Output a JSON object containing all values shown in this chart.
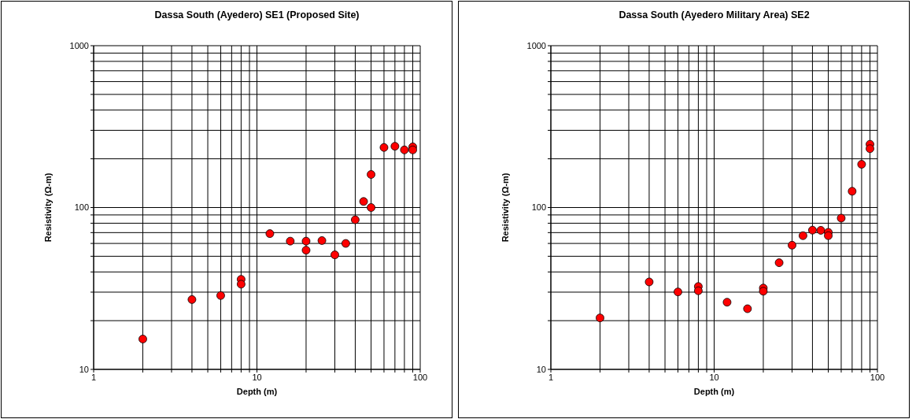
{
  "chart_data": [
    {
      "type": "scatter",
      "title": "Dassa South (Ayedero) SE1 (Proposed Site)",
      "xlabel": "Depth (m)",
      "ylabel": "Resistivity (Ω-m)",
      "log": "xy",
      "grid": true,
      "marker": "circle",
      "xlim": [
        1,
        100
      ],
      "ylim": [
        10,
        1000
      ],
      "xticks": [
        1,
        {
          "value": 2,
          "label": null
        },
        {
          "value": 3,
          "label": null
        },
        {
          "value": 4,
          "label": null
        },
        {
          "value": 5,
          "label": null
        },
        {
          "value": 6,
          "label": null
        },
        {
          "value": 7,
          "label": null
        },
        {
          "value": 8,
          "label": null
        },
        {
          "value": 9,
          "label": null
        },
        10,
        {
          "value": 20,
          "label": null
        },
        {
          "value": 30,
          "label": null
        },
        {
          "value": 40,
          "label": null
        },
        {
          "value": 50,
          "label": null
        },
        {
          "value": 60,
          "label": null
        },
        {
          "value": 70,
          "label": null
        },
        {
          "value": 80,
          "label": null
        },
        {
          "value": 90,
          "label": null
        },
        100
      ],
      "yticks": [
        10,
        {
          "value": 20,
          "label": null
        },
        {
          "value": 30,
          "label": null
        },
        {
          "value": 40,
          "label": null
        },
        {
          "value": 50,
          "label": null
        },
        {
          "value": 60,
          "label": null
        },
        {
          "value": 70,
          "label": null
        },
        {
          "value": 80,
          "label": null
        },
        {
          "value": 90,
          "label": null
        },
        100,
        {
          "value": 200,
          "label": null
        },
        {
          "value": 300,
          "label": null
        },
        {
          "value": 400,
          "label": null
        },
        {
          "value": 500,
          "label": null
        },
        {
          "value": 600,
          "label": null
        },
        {
          "value": 700,
          "label": null
        },
        {
          "value": 800,
          "label": null
        },
        {
          "value": 900,
          "label": null
        },
        1000
      ],
      "series": [
        {
          "color": "#ff0000",
          "x": [
            2,
            4,
            6,
            8,
            8,
            12,
            16,
            20,
            20,
            25,
            30,
            35,
            40,
            45,
            50,
            50,
            60,
            70,
            80,
            90,
            90
          ],
          "values": [
            15.4,
            27,
            28.6,
            36,
            33.6,
            69,
            62,
            62,
            54.5,
            62.5,
            51,
            60,
            84,
            109,
            100,
            160,
            235,
            239,
            227,
            237,
            227
          ]
        }
      ]
    },
    {
      "type": "scatter",
      "title": "Dassa South (Ayedero Military Area) SE2",
      "xlabel": "Depth (m)",
      "ylabel": "Resistivity (Ω-m)",
      "log": "xy",
      "grid": true,
      "marker": "circle",
      "xlim": [
        1,
        100
      ],
      "ylim": [
        10,
        1000
      ],
      "xticks": [
        1,
        {
          "value": 2,
          "label": null
        },
        {
          "value": 3,
          "label": null
        },
        {
          "value": 4,
          "label": null
        },
        {
          "value": 5,
          "label": null
        },
        {
          "value": 6,
          "label": null
        },
        {
          "value": 7,
          "label": null
        },
        {
          "value": 8,
          "label": null
        },
        {
          "value": 9,
          "label": null
        },
        10,
        {
          "value": 20,
          "label": null
        },
        {
          "value": 30,
          "label": null
        },
        {
          "value": 40,
          "label": null
        },
        {
          "value": 50,
          "label": null
        },
        {
          "value": 60,
          "label": null
        },
        {
          "value": 70,
          "label": null
        },
        {
          "value": 80,
          "label": null
        },
        {
          "value": 90,
          "label": null
        },
        100
      ],
      "yticks": [
        10,
        {
          "value": 20,
          "label": null
        },
        {
          "value": 30,
          "label": null
        },
        {
          "value": 40,
          "label": null
        },
        {
          "value": 50,
          "label": null
        },
        {
          "value": 60,
          "label": null
        },
        {
          "value": 70,
          "label": null
        },
        {
          "value": 80,
          "label": null
        },
        {
          "value": 90,
          "label": null
        },
        100,
        {
          "value": 200,
          "label": null
        },
        {
          "value": 300,
          "label": null
        },
        {
          "value": 400,
          "label": null
        },
        {
          "value": 500,
          "label": null
        },
        {
          "value": 600,
          "label": null
        },
        {
          "value": 700,
          "label": null
        },
        {
          "value": 800,
          "label": null
        },
        {
          "value": 900,
          "label": null
        },
        1000
      ],
      "series": [
        {
          "color": "#ff0000",
          "x": [
            2,
            4,
            6,
            8,
            8,
            12,
            16,
            20,
            20,
            25,
            30,
            35,
            40,
            45,
            50,
            50,
            60,
            70,
            80,
            90,
            90
          ],
          "values": [
            20.8,
            34.7,
            30.1,
            32.5,
            30.6,
            26,
            23.7,
            31.8,
            30.4,
            45.6,
            58.5,
            67,
            72.5,
            72.3,
            70.3,
            67,
            86,
            126,
            185,
            246,
            231
          ]
        }
      ]
    }
  ]
}
